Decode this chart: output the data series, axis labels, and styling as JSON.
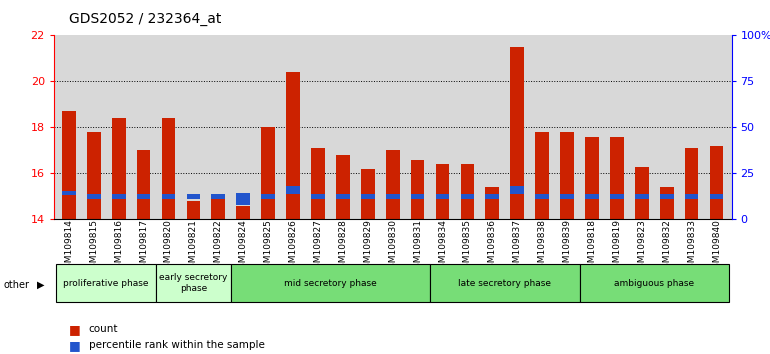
{
  "title": "GDS2052 / 232364_at",
  "samples": [
    "GSM109814",
    "GSM109815",
    "GSM109816",
    "GSM109817",
    "GSM109820",
    "GSM109821",
    "GSM109822",
    "GSM109824",
    "GSM109825",
    "GSM109826",
    "GSM109827",
    "GSM109828",
    "GSM109829",
    "GSM109830",
    "GSM109831",
    "GSM109834",
    "GSM109835",
    "GSM109836",
    "GSM109837",
    "GSM109838",
    "GSM109839",
    "GSM109818",
    "GSM109819",
    "GSM109823",
    "GSM109832",
    "GSM109833",
    "GSM109840"
  ],
  "red_values": [
    18.7,
    17.8,
    18.4,
    17.0,
    18.4,
    14.8,
    15.0,
    14.6,
    18.0,
    20.4,
    17.1,
    16.8,
    16.2,
    17.0,
    16.6,
    16.4,
    16.4,
    15.4,
    21.5,
    17.8,
    17.8,
    17.6,
    17.6,
    16.3,
    15.4,
    17.1,
    17.2
  ],
  "blue_bottoms": [
    15.05,
    14.9,
    14.9,
    14.9,
    14.9,
    14.9,
    14.9,
    14.62,
    14.9,
    15.1,
    14.9,
    14.9,
    14.9,
    14.9,
    14.9,
    14.9,
    14.9,
    14.9,
    15.1,
    14.9,
    14.9,
    14.9,
    14.9,
    14.9,
    14.9,
    14.9,
    14.9
  ],
  "blue_heights": [
    0.2,
    0.2,
    0.2,
    0.2,
    0.2,
    0.2,
    0.2,
    0.55,
    0.2,
    0.35,
    0.2,
    0.2,
    0.2,
    0.2,
    0.2,
    0.2,
    0.2,
    0.2,
    0.35,
    0.2,
    0.2,
    0.2,
    0.2,
    0.2,
    0.2,
    0.2,
    0.2
  ],
  "ylim_left": [
    14,
    22
  ],
  "yticks_left": [
    14,
    16,
    18,
    20,
    22
  ],
  "ylim_right": [
    0,
    100
  ],
  "ytick_labels_right": [
    "0",
    "25",
    "50",
    "75",
    "100%"
  ],
  "bar_color": "#cc2200",
  "blue_color": "#2255cc",
  "plot_bg": "#d8d8d8",
  "phase_groups": [
    {
      "label": "proliferative phase",
      "start": 0,
      "end": 4,
      "color": "#ccffcc"
    },
    {
      "label": "early secretory\nphase",
      "start": 4,
      "end": 7,
      "color": "#ccffcc"
    },
    {
      "label": "mid secretory phase",
      "start": 7,
      "end": 15,
      "color": "#77dd77"
    },
    {
      "label": "late secretory phase",
      "start": 15,
      "end": 21,
      "color": "#77dd77"
    },
    {
      "label": "ambiguous phase",
      "start": 21,
      "end": 27,
      "color": "#77dd77"
    }
  ],
  "bar_width": 0.55,
  "title_fontsize": 10,
  "tick_fontsize": 6.5,
  "axis_fontsize": 8
}
